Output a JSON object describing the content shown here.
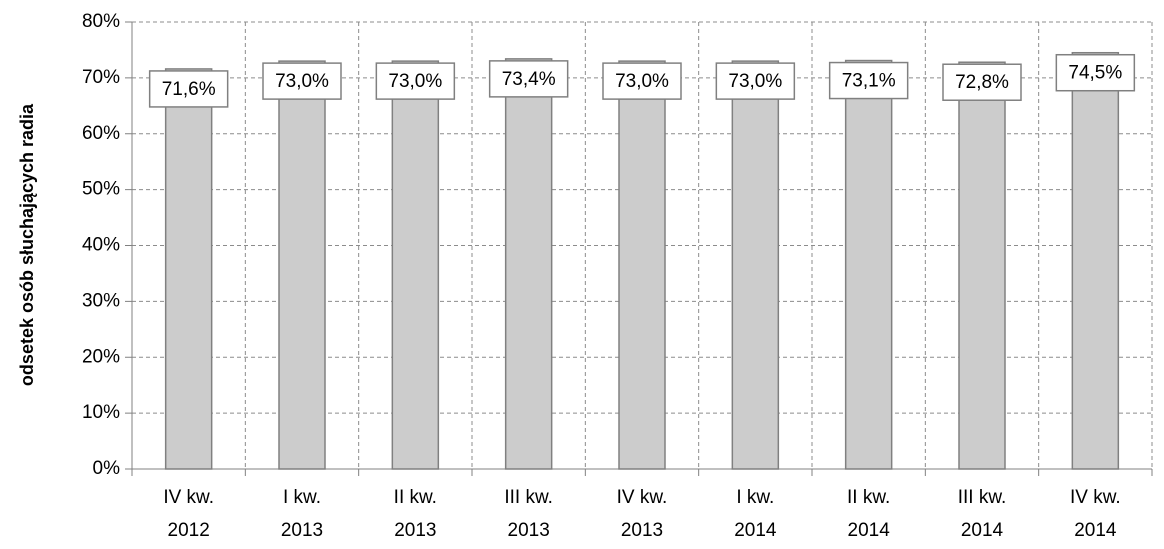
{
  "chart_data": {
    "type": "bar",
    "title": "",
    "xlabel": "",
    "ylabel": "odsetek osób słuchających radia",
    "categories": [
      [
        "IV kw.",
        "2012"
      ],
      [
        "I kw.",
        "2013"
      ],
      [
        "II kw.",
        "2013"
      ],
      [
        "III kw.",
        "2013"
      ],
      [
        "IV kw.",
        "2013"
      ],
      [
        "I kw.",
        "2014"
      ],
      [
        "II kw.",
        "2014"
      ],
      [
        "III kw.",
        "2014"
      ],
      [
        "IV kw.",
        "2014"
      ]
    ],
    "values": [
      71.6,
      73.0,
      73.0,
      73.4,
      73.0,
      73.0,
      73.1,
      72.8,
      74.5
    ],
    "data_labels": [
      "71,6%",
      "73,0%",
      "73,0%",
      "73,4%",
      "73,0%",
      "73,0%",
      "73,1%",
      "72,8%",
      "74,5%"
    ],
    "ylim": [
      0,
      80
    ],
    "yticks": [
      "0%",
      "10%",
      "20%",
      "30%",
      "40%",
      "50%",
      "60%",
      "70%",
      "80%"
    ],
    "grid": "dashed",
    "bar_color": "#cccccc",
    "bar_edge_color": "#808080"
  }
}
